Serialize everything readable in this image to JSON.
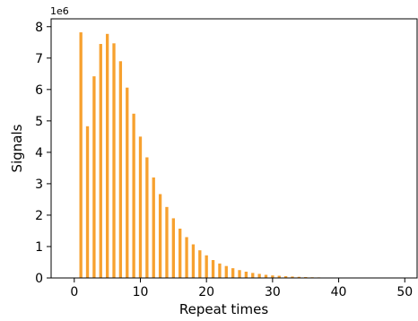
{
  "chart_data": {
    "type": "bar",
    "xlabel": "Repeat times",
    "ylabel": "Signals",
    "y_scale_label": "1e6",
    "xlim": [
      -3.5,
      52
    ],
    "ylim": [
      0,
      8.25
    ],
    "xticks": [
      0,
      10,
      20,
      30,
      40,
      50
    ],
    "yticks": [
      0,
      1,
      2,
      3,
      4,
      5,
      6,
      7,
      8
    ],
    "bar_color": "#f7a12f",
    "grid": false,
    "x": [
      1,
      2,
      3,
      4,
      5,
      6,
      7,
      8,
      9,
      10,
      11,
      12,
      13,
      14,
      15,
      16,
      17,
      18,
      19,
      20,
      21,
      22,
      23,
      24,
      25,
      26,
      27,
      28,
      29,
      30,
      31,
      32,
      33,
      34,
      35,
      36,
      37,
      38,
      39,
      40,
      41,
      42,
      43,
      44,
      45,
      46,
      47,
      48,
      49,
      50
    ],
    "values": [
      7.82,
      4.83,
      6.42,
      7.45,
      7.77,
      7.47,
      6.9,
      6.06,
      5.23,
      4.5,
      3.84,
      3.2,
      2.67,
      2.26,
      1.9,
      1.57,
      1.3,
      1.07,
      0.88,
      0.72,
      0.57,
      0.46,
      0.38,
      0.31,
      0.25,
      0.2,
      0.16,
      0.13,
      0.1,
      0.08,
      0.07,
      0.055,
      0.045,
      0.036,
      0.028,
      0.022,
      0.018,
      0.014,
      0.011,
      0.009,
      0.007,
      0.006,
      0.005,
      0.004,
      0.003,
      0.003,
      0.002,
      0.002,
      0.001,
      0.001
    ]
  }
}
